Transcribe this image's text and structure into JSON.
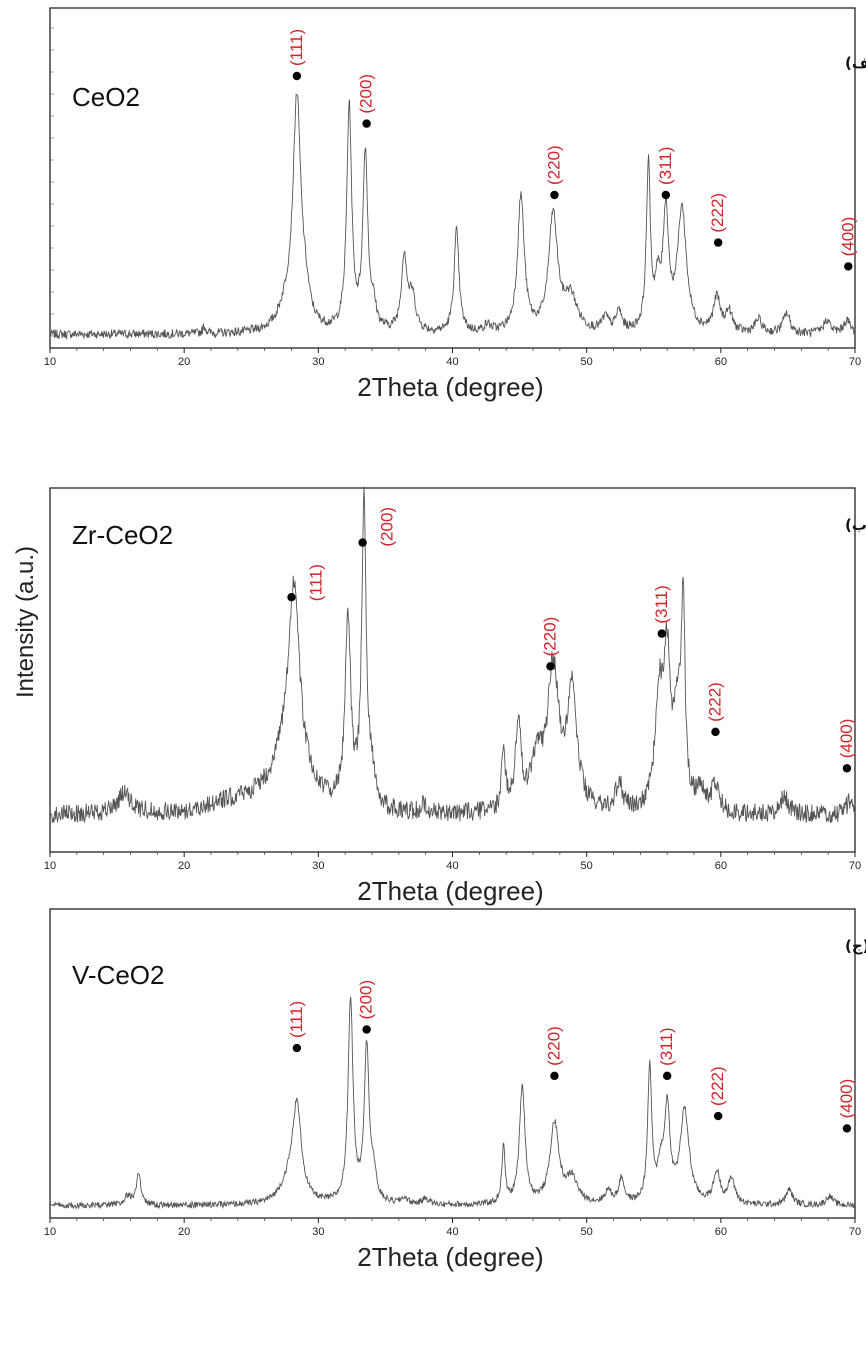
{
  "figure": {
    "y_axis_label": "Intensity (a.u.)"
  },
  "chart_data": [
    {
      "type": "line",
      "sample_label": "CeO2",
      "panel_letter": "(الف)",
      "xlabel": "2Theta (degree)",
      "xlim": [
        10,
        70
      ],
      "ylim": [
        0,
        100
      ],
      "xticks": [
        10,
        20,
        30,
        40,
        50,
        60,
        70
      ],
      "xtick_labels": [
        "10",
        "20",
        "30",
        "40",
        "50",
        "60",
        "70"
      ],
      "baseline": 4,
      "noise": 1.3,
      "peaks": [
        {
          "x": 21.5,
          "h": 2,
          "w": 0.15
        },
        {
          "x": 27.6,
          "h": 6,
          "w": 0.7
        },
        {
          "x": 28.4,
          "h": 66,
          "w": 0.35
        },
        {
          "x": 29.0,
          "h": 8,
          "w": 0.4
        },
        {
          "x": 32.3,
          "h": 66,
          "w": 0.22
        },
        {
          "x": 33.5,
          "h": 52,
          "w": 0.22
        },
        {
          "x": 34.1,
          "h": 6,
          "w": 0.25
        },
        {
          "x": 36.4,
          "h": 22,
          "w": 0.25
        },
        {
          "x": 37.0,
          "h": 10,
          "w": 0.3
        },
        {
          "x": 40.3,
          "h": 30,
          "w": 0.22
        },
        {
          "x": 42.6,
          "h": 2,
          "w": 0.3
        },
        {
          "x": 45.1,
          "h": 40,
          "w": 0.3
        },
        {
          "x": 47.5,
          "h": 34,
          "w": 0.4
        },
        {
          "x": 48.8,
          "h": 10,
          "w": 0.6
        },
        {
          "x": 51.4,
          "h": 4,
          "w": 0.3
        },
        {
          "x": 52.4,
          "h": 6,
          "w": 0.25
        },
        {
          "x": 54.6,
          "h": 48,
          "w": 0.18
        },
        {
          "x": 55.3,
          "h": 12,
          "w": 0.25
        },
        {
          "x": 55.9,
          "h": 34,
          "w": 0.25
        },
        {
          "x": 57.1,
          "h": 36,
          "w": 0.4
        },
        {
          "x": 59.7,
          "h": 10,
          "w": 0.3
        },
        {
          "x": 60.6,
          "h": 6,
          "w": 0.3
        },
        {
          "x": 62.8,
          "h": 4,
          "w": 0.3
        },
        {
          "x": 64.9,
          "h": 6,
          "w": 0.3
        },
        {
          "x": 67.9,
          "h": 4,
          "w": 0.3
        },
        {
          "x": 69.4,
          "h": 4,
          "w": 0.3
        }
      ],
      "hkl_markers": [
        {
          "label": "(111)",
          "x": 28.4,
          "y": 80
        },
        {
          "label": "(200)",
          "x": 33.6,
          "y": 66
        },
        {
          "label": "(220)",
          "x": 47.6,
          "y": 45
        },
        {
          "label": "(311)",
          "x": 55.9,
          "y": 45
        },
        {
          "label": "(222)",
          "x": 59.8,
          "y": 31
        },
        {
          "label": "(400)",
          "x": 69.5,
          "y": 24
        }
      ]
    },
    {
      "type": "line",
      "sample_label": "Zr-CeO2",
      "panel_letter": "(ب)",
      "xlabel": "2Theta (degree)",
      "xlim": [
        10,
        70
      ],
      "ylim": [
        0,
        100
      ],
      "xticks": [
        10,
        20,
        30,
        40,
        50,
        60,
        70
      ],
      "xtick_labels": [
        "10",
        "20",
        "30",
        "40",
        "50",
        "60",
        "70"
      ],
      "baseline": 10,
      "noise": 2.6,
      "peaks": [
        {
          "x": 15.5,
          "h": 5,
          "w": 0.5
        },
        {
          "x": 27.9,
          "h": 18,
          "w": 1.4
        },
        {
          "x": 28.2,
          "h": 46,
          "w": 0.45
        },
        {
          "x": 32.2,
          "h": 52,
          "w": 0.25
        },
        {
          "x": 33.4,
          "h": 84,
          "w": 0.2
        },
        {
          "x": 34.0,
          "h": 8,
          "w": 0.3
        },
        {
          "x": 37.8,
          "h": 2,
          "w": 0.3
        },
        {
          "x": 43.8,
          "h": 18,
          "w": 0.15
        },
        {
          "x": 44.9,
          "h": 24,
          "w": 0.25
        },
        {
          "x": 46.3,
          "h": 14,
          "w": 0.5
        },
        {
          "x": 47.5,
          "h": 38,
          "w": 0.5
        },
        {
          "x": 48.9,
          "h": 32,
          "w": 0.45
        },
        {
          "x": 52.4,
          "h": 8,
          "w": 0.3
        },
        {
          "x": 55.4,
          "h": 30,
          "w": 0.35
        },
        {
          "x": 56.0,
          "h": 38,
          "w": 0.3
        },
        {
          "x": 56.8,
          "h": 26,
          "w": 0.35
        },
        {
          "x": 57.2,
          "h": 52,
          "w": 0.15
        },
        {
          "x": 58.5,
          "h": 6,
          "w": 0.4
        },
        {
          "x": 59.6,
          "h": 8,
          "w": 0.3
        },
        {
          "x": 64.7,
          "h": 5,
          "w": 0.4
        },
        {
          "x": 69.6,
          "h": 4,
          "w": 0.3
        }
      ],
      "hkl_markers": [
        {
          "label": "(111)",
          "x": 28.0,
          "y": 70
        },
        {
          "label": "(200)",
          "x": 33.3,
          "y": 85
        },
        {
          "label": "(220)",
          "x": 47.3,
          "y": 51
        },
        {
          "label": "(311)",
          "x": 55.6,
          "y": 60
        },
        {
          "label": "(222)",
          "x": 59.6,
          "y": 33
        },
        {
          "label": "(400)",
          "x": 69.4,
          "y": 23
        }
      ]
    },
    {
      "type": "line",
      "sample_label": "V-CeO2",
      "panel_letter": "(ج)",
      "xlabel": "2Theta (degree)",
      "xlim": [
        10,
        70
      ],
      "ylim": [
        0,
        100
      ],
      "xticks": [
        10,
        20,
        30,
        40,
        50,
        60,
        70
      ],
      "xtick_labels": [
        "10",
        "20",
        "30",
        "40",
        "50",
        "60",
        "70"
      ],
      "baseline": 4,
      "noise": 1.0,
      "peaks": [
        {
          "x": 16.6,
          "h": 10,
          "w": 0.2
        },
        {
          "x": 15.8,
          "h": 3,
          "w": 0.3
        },
        {
          "x": 27.8,
          "h": 6,
          "w": 0.8
        },
        {
          "x": 28.4,
          "h": 30,
          "w": 0.4
        },
        {
          "x": 32.4,
          "h": 66,
          "w": 0.22
        },
        {
          "x": 33.6,
          "h": 50,
          "w": 0.22
        },
        {
          "x": 34.1,
          "h": 8,
          "w": 0.25
        },
        {
          "x": 36.4,
          "h": 2,
          "w": 0.3
        },
        {
          "x": 38.0,
          "h": 2,
          "w": 0.3
        },
        {
          "x": 43.8,
          "h": 18,
          "w": 0.15
        },
        {
          "x": 45.2,
          "h": 38,
          "w": 0.25
        },
        {
          "x": 47.6,
          "h": 26,
          "w": 0.4
        },
        {
          "x": 48.9,
          "h": 8,
          "w": 0.5
        },
        {
          "x": 51.6,
          "h": 4,
          "w": 0.3
        },
        {
          "x": 52.6,
          "h": 8,
          "w": 0.25
        },
        {
          "x": 54.7,
          "h": 44,
          "w": 0.18
        },
        {
          "x": 55.5,
          "h": 10,
          "w": 0.25
        },
        {
          "x": 56.0,
          "h": 30,
          "w": 0.25
        },
        {
          "x": 57.3,
          "h": 30,
          "w": 0.4
        },
        {
          "x": 59.7,
          "h": 10,
          "w": 0.3
        },
        {
          "x": 60.8,
          "h": 8,
          "w": 0.3
        },
        {
          "x": 65.1,
          "h": 5,
          "w": 0.3
        },
        {
          "x": 68.1,
          "h": 3,
          "w": 0.3
        }
      ],
      "hkl_markers": [
        {
          "label": "(111)",
          "x": 28.4,
          "y": 55
        },
        {
          "label": "(200)",
          "x": 33.6,
          "y": 61
        },
        {
          "label": "(220)",
          "x": 47.6,
          "y": 46
        },
        {
          "label": "(311)",
          "x": 56.0,
          "y": 46
        },
        {
          "label": "(222)",
          "x": 59.8,
          "y": 33
        },
        {
          "label": "(400)",
          "x": 69.4,
          "y": 29
        }
      ]
    }
  ]
}
